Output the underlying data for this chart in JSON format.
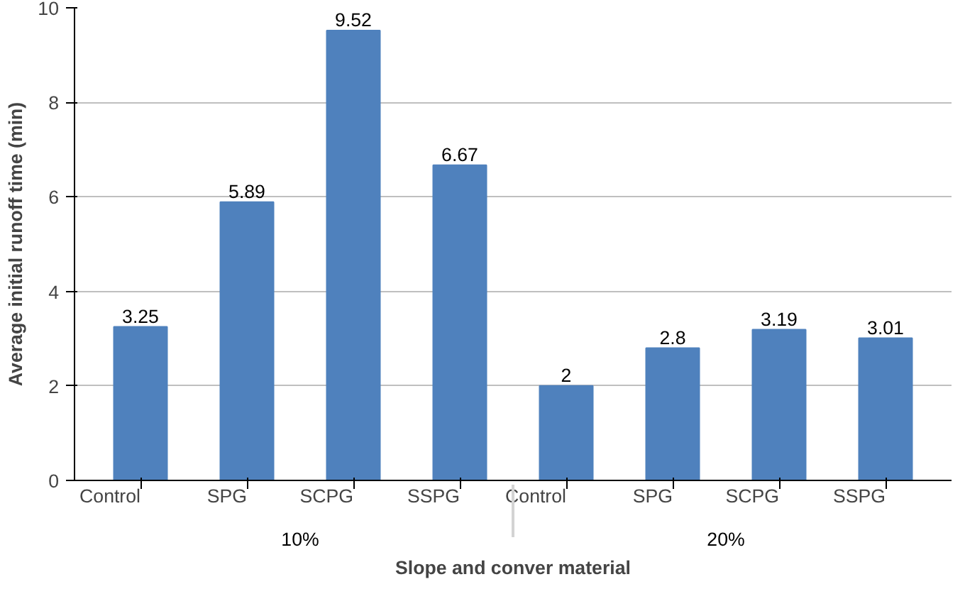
{
  "chart_data": {
    "type": "bar",
    "categories": [
      "Control",
      "SPG",
      "SCPG",
      "SSPG",
      "Control",
      "SPG",
      "SCPG",
      "SSPG"
    ],
    "values": [
      3.25,
      5.89,
      9.52,
      6.67,
      2,
      2.8,
      3.19,
      3.01
    ],
    "color": "#4f81bd",
    "xlabel": "Slope and conver material",
    "ylabel": "Average initial runoff time (min)",
    "annotations": [
      "10%",
      "20%"
    ],
    "ylim": [
      0,
      10
    ],
    "yticks": [
      0,
      2,
      4,
      6,
      8,
      10
    ],
    "grid": "y",
    "data_labels": true
  }
}
